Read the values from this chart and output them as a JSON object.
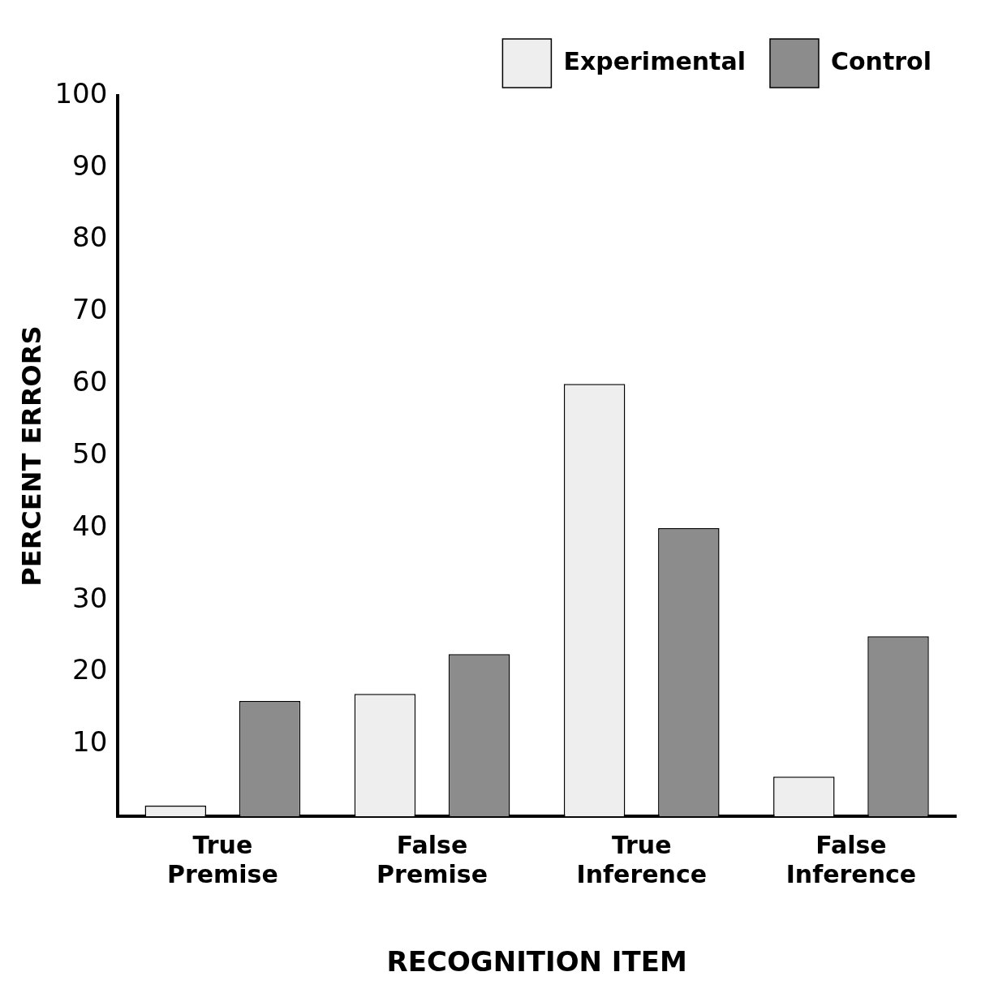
{
  "chart_data": {
    "type": "bar",
    "xlabel": "RECOGNITION ITEM",
    "ylabel": "PERCENT ERRORS",
    "categories": [
      "True\nPremise",
      "False\nPremise",
      "True\nInference",
      "False\nInference"
    ],
    "series": [
      {
        "name": "Experimental",
        "color": "#eeeeee",
        "values": [
          1.5,
          17,
          60,
          5.5
        ]
      },
      {
        "name": "Control",
        "color": "#8c8c8c",
        "values": [
          16,
          22.5,
          40,
          25
        ]
      }
    ],
    "ylim": [
      0,
      100
    ],
    "yticks": [
      10,
      20,
      30,
      40,
      50,
      60,
      70,
      80,
      90,
      100
    ],
    "grid": false,
    "legend": "top right"
  }
}
